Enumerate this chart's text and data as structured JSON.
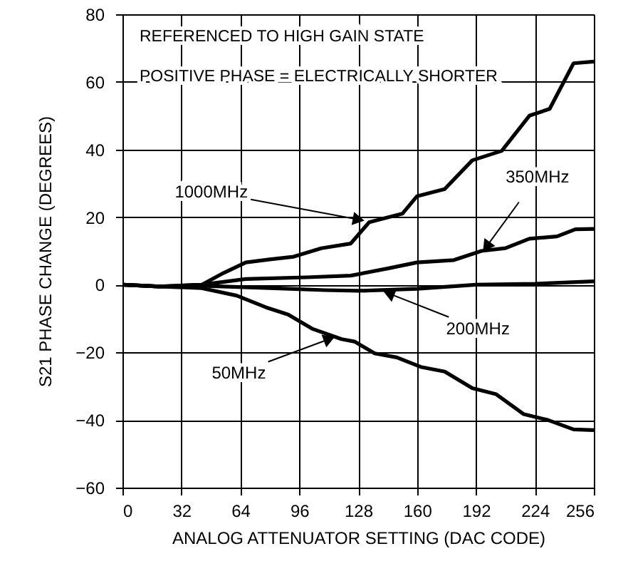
{
  "chart_data": {
    "type": "line",
    "xlabel": "ANALOG ATTENUATOR SETTING (DAC CODE)",
    "ylabel": "S21 PHASE CHANGE (DEGREES)",
    "xlim": [
      0,
      256
    ],
    "xticks": [
      0,
      32,
      64,
      96,
      128,
      160,
      192,
      224,
      256
    ],
    "ylim": [
      -60,
      80
    ],
    "yticks": [
      -60,
      -40,
      -20,
      0,
      20,
      40,
      60,
      80
    ],
    "grid": true,
    "line_style": "solid",
    "marker": "none",
    "series": [
      {
        "color": "#000000",
        "x": [
          0,
          20,
          43,
          55,
          67,
          80,
          93,
          108,
          124,
          134,
          144,
          152,
          160,
          175,
          190,
          206,
          221,
          232,
          245,
          256
        ],
        "values": [
          0,
          -0.5,
          0,
          3.5,
          6.6,
          7.5,
          8.3,
          10.8,
          12.2,
          18.5,
          19.9,
          21,
          26.2,
          28.3,
          36.8,
          39.6,
          50,
          52,
          65.5,
          66
        ]
      },
      {
        "color": "#000000",
        "x": [
          0,
          20,
          43,
          67,
          100,
          124,
          144,
          160,
          180,
          195,
          208,
          221,
          236,
          246,
          256
        ],
        "values": [
          0,
          -0.5,
          0,
          1.7,
          2.2,
          2.7,
          4.8,
          6.6,
          7.3,
          10,
          10.8,
          13.6,
          14.3,
          16.4,
          16.5
        ]
      },
      {
        "color": "#000000",
        "x": [
          0,
          20,
          43,
          80,
          110,
          128,
          160,
          192,
          224,
          256
        ],
        "values": [
          0,
          -0.5,
          -0.3,
          -1,
          -1.6,
          -1.8,
          -1.2,
          0,
          0.3,
          1
        ]
      },
      {
        "color": "#000000",
        "x": [
          0,
          20,
          43,
          62,
          78,
          90,
          103,
          119,
          126,
          137,
          149,
          162,
          175,
          190,
          203,
          218,
          231,
          245,
          256
        ],
        "values": [
          0,
          -0.5,
          -1,
          -3.2,
          -6.7,
          -8.8,
          -13,
          -16.1,
          -16.8,
          -20.3,
          -21.5,
          -24.3,
          -25.7,
          -30.6,
          -32.4,
          -38.3,
          -40,
          -42.8,
          -43
        ]
      }
    ],
    "annotations": [
      "REFERENCED TO HIGH GAIN STATE",
      "POSITIVE PHASE = ELECTRICALLY SHORTER",
      {
        "text": "1000MHz",
        "x": 131,
        "y": 19
      },
      {
        "text": "350MHz",
        "x": 196,
        "y": 10
      },
      {
        "text": "200MHz",
        "x": 142,
        "y": -2
      },
      {
        "text": "50MHz",
        "x": 115,
        "y": -15.5
      }
    ]
  }
}
